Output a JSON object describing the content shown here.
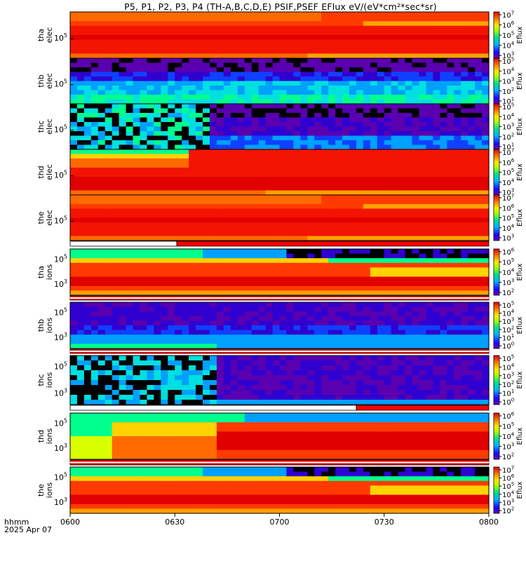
{
  "title": "P5, P1, P2, P3, P4 (TH-A,B,C,D,E) PSIF,PSEF EFlux eV/(eV*cm²*sec*sr)",
  "footer": {
    "line1": "hhmm",
    "line2": "2025 Apr 07"
  },
  "chart_data": {
    "type": "heatmap",
    "x": {
      "ticks": [
        "0600",
        "0630",
        "0700",
        "0730",
        "0800"
      ]
    },
    "colorbar_label": "Eflux",
    "panels": [
      {
        "label1": "tha",
        "label2": "elec",
        "ytick": "10^5",
        "cbar": [
          "10^3",
          "10^4",
          "10^5",
          "10^6",
          "10^7"
        ],
        "scheme": "elec_hot"
      },
      {
        "label1": "thb",
        "label2": "elec",
        "ytick": "10^5",
        "cbar": [
          "10^1",
          "10^2",
          "10^3",
          "10^4",
          "10^5"
        ],
        "scheme": "elec_cool"
      },
      {
        "label1": "thc",
        "label2": "elec",
        "ytick": "10^5",
        "cbar": [
          "10^1",
          "10^2",
          "10^3",
          "10^4",
          "10^5"
        ],
        "scheme": "elec_noisy"
      },
      {
        "label1": "thd",
        "label2": "elec",
        "ytick": "10^5",
        "cbar": [
          "10^3",
          "10^4",
          "10^5",
          "10^6",
          "10^7"
        ],
        "scheme": "elec_hot_d"
      },
      {
        "label1": "the",
        "label2": "elec",
        "ytick": "10^5",
        "cbar": [
          "10^3",
          "10^4",
          "10^5",
          "10^6",
          "10^7"
        ],
        "scheme": "elec_hot"
      },
      {
        "label1": "tha",
        "label2": "ions",
        "yticks": [
          "10^5",
          "10^3"
        ],
        "cbar": [
          "10^2",
          "10^3",
          "10^4",
          "10^5",
          "10^6"
        ],
        "scheme": "ions_hot"
      },
      {
        "label1": "thb",
        "label2": "ions",
        "yticks": [
          "10^5",
          "10^3"
        ],
        "cbar": [
          "10^0",
          "10^1",
          "10^2",
          "10^3",
          "10^4",
          "10^5"
        ],
        "scheme": "ions_cool"
      },
      {
        "label1": "thc",
        "label2": "ions",
        "yticks": [
          "10^5",
          "10^3"
        ],
        "cbar": [
          "10^0",
          "10^1",
          "10^2",
          "10^3",
          "10^4",
          "10^5"
        ],
        "scheme": "ions_noisy"
      },
      {
        "label1": "thd",
        "label2": "ions",
        "yticks": [
          "10^5",
          "10^3"
        ],
        "cbar": [
          "10^2",
          "10^3",
          "10^4",
          "10^5",
          "10^6"
        ],
        "scheme": "ions_d"
      },
      {
        "label1": "the",
        "label2": "ions",
        "yticks": [
          "10^5",
          "10^3"
        ],
        "cbar": [
          "10^2",
          "10^3",
          "10^4",
          "10^5",
          "10^6",
          "10^7"
        ],
        "scheme": "ions_hot"
      }
    ]
  }
}
